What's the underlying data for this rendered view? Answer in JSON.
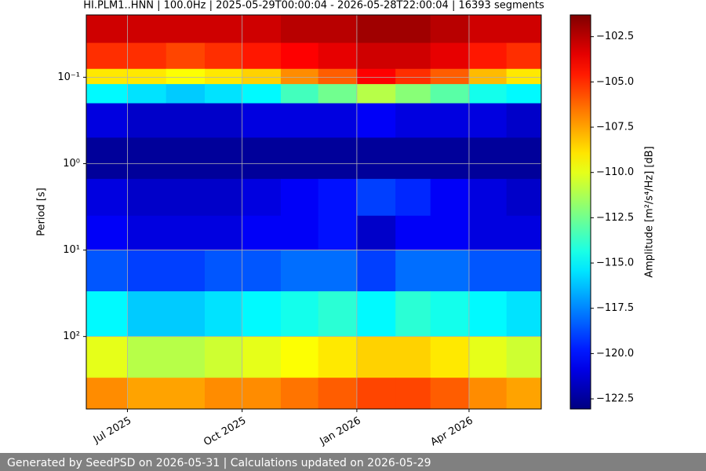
{
  "chart_data": {
    "type": "heatmap",
    "title": "HI.PLM1..HNN | 100.0Hz | 2025-05-29T00:00:04 - 2026-05-28T22:00:04 | 16393 segments",
    "ylabel": "Period [s]",
    "colorbar_label": "Amplitude [m²/s⁴/Hz] [dB]",
    "footer": "Generated by SeedPSD on 2026-05-31 | Calculations updated on 2026-05-29",
    "colormap": "jet",
    "y_log": true,
    "y_inverted": true,
    "grid": true,
    "xlim": [
      "2025-05-29T00:00:04",
      "2026-05-28T22:00:04"
    ],
    "xticks": [
      {
        "value": "2025-07-01",
        "label": "Jul 2025"
      },
      {
        "value": "2025-10-01",
        "label": "Oct 2025"
      },
      {
        "value": "2026-01-01",
        "label": "Jan 2026"
      },
      {
        "value": "2026-04-01",
        "label": "Apr 2026"
      }
    ],
    "ylim": [
      0.019,
      690
    ],
    "yticks": [
      {
        "value": 0.1,
        "label": "10⁻¹"
      },
      {
        "value": 1,
        "label": "10⁰"
      },
      {
        "value": 10,
        "label": "10¹"
      },
      {
        "value": 100,
        "label": "10²"
      }
    ],
    "clim": [
      -123.06,
      -101.3
    ],
    "cticks": [
      {
        "value": -102.5,
        "label": "−102.5"
      },
      {
        "value": -105,
        "label": "−105.0"
      },
      {
        "value": -107.5,
        "label": "−107.5"
      },
      {
        "value": -110,
        "label": "−110.0"
      },
      {
        "value": -112.5,
        "label": "−112.5"
      },
      {
        "value": -115,
        "label": "−115.0"
      },
      {
        "value": -117.5,
        "label": "−117.5"
      },
      {
        "value": -120,
        "label": "−120.0"
      },
      {
        "value": -122.5,
        "label": "−122.5"
      }
    ],
    "x_edges": [
      "2025-05-29T00:00:04",
      "2025-07-01",
      "2025-08-01",
      "2025-09-01",
      "2025-10-01",
      "2025-11-01",
      "2025-12-01",
      "2026-01-01",
      "2026-02-01",
      "2026-03-01",
      "2026-04-01",
      "2026-05-01",
      "2026-05-28T22:00:04"
    ],
    "y_edges": [
      0.019,
      0.04,
      0.08,
      0.12,
      0.2,
      0.5,
      1.5,
      4,
      10,
      30,
      100,
      300,
      690
    ],
    "values": [
      [
        -103,
        -103,
        -103,
        -103,
        -103,
        -102.5,
        -102.5,
        -102,
        -102,
        -102.5,
        -103,
        -103
      ],
      [
        -105,
        -105,
        -105.5,
        -105,
        -104.5,
        -104,
        -103.5,
        -103,
        -103,
        -103.5,
        -104.5,
        -105
      ],
      [
        -109,
        -109,
        -109.5,
        -109,
        -108.5,
        -107,
        -106,
        -104,
        -105,
        -106,
        -108,
        -109
      ],
      [
        -115,
        -115.5,
        -116,
        -115.5,
        -115,
        -113.5,
        -112.5,
        -111,
        -112,
        -113,
        -114.5,
        -115
      ],
      [
        -121,
        -121.5,
        -121.5,
        -121.5,
        -121,
        -121,
        -121,
        -120.5,
        -121,
        -121,
        -121,
        -121.5
      ],
      [
        -122.5,
        -122.5,
        -122.5,
        -122.5,
        -122.5,
        -122.5,
        -122.5,
        -122.5,
        -122.5,
        -122.5,
        -122.5,
        -122.5
      ],
      [
        -121,
        -121.5,
        -121.5,
        -121.5,
        -121,
        -120.5,
        -120,
        -119,
        -119.5,
        -120.5,
        -121,
        -121.5
      ],
      [
        -120.5,
        -121,
        -121,
        -121,
        -120.5,
        -120.5,
        -120,
        -121.5,
        -120.5,
        -120.5,
        -121,
        -121
      ],
      [
        -118.5,
        -119,
        -119,
        -118.5,
        -118.5,
        -118,
        -118,
        -119,
        -118,
        -118,
        -118.5,
        -118.5
      ],
      [
        -115,
        -116,
        -116,
        -115.5,
        -115,
        -114.5,
        -114,
        -115,
        -114,
        -114.5,
        -115,
        -115.5
      ],
      [
        -110,
        -111,
        -111,
        -110.5,
        -110,
        -109.5,
        -109,
        -108.5,
        -108.5,
        -109,
        -110,
        -110.5
      ],
      [
        -107,
        -107.5,
        -107.5,
        -107,
        -107,
        -106.5,
        -106,
        -105.5,
        -105.5,
        -106,
        -107,
        -107.5
      ]
    ]
  }
}
